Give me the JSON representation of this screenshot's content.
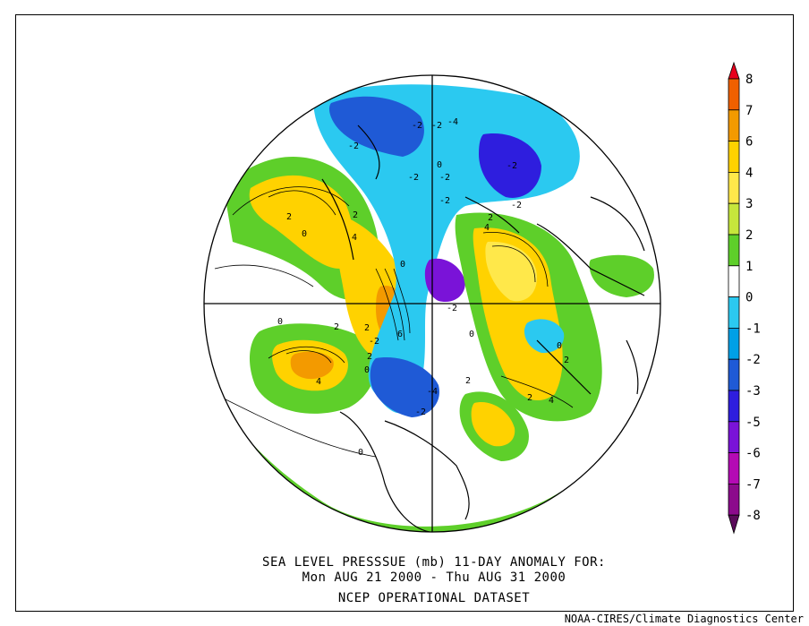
{
  "caption": {
    "line1": "SEA LEVEL PRESSSUE (mb)   11-DAY ANOMALY FOR:",
    "line2": "Mon AUG 21 2000 - Thu AUG 31 2000",
    "line3": "NCEP OPERATIONAL DATASET"
  },
  "credit": "NOAA-CIRES/Climate Diagnostics Center",
  "colorbar": {
    "labels": [
      "8",
      "7",
      "6",
      "4",
      "3",
      "2",
      "1",
      "0",
      "-1",
      "-2",
      "-3",
      "-5",
      "-6",
      "-7",
      "-8"
    ],
    "colors": [
      "#e8001c",
      "#f06000",
      "#f39a00",
      "#ffd200",
      "#ffe84a",
      "#c6e63c",
      "#5ecf2a",
      "#ffffff",
      "#2bc9f0",
      "#00a0e6",
      "#1f5ad6",
      "#2e1ede",
      "#7a13d8",
      "#b40ab4",
      "#8c0a8c",
      "#5a0a5a"
    ]
  },
  "map": {
    "contour_labels": [
      {
        "t": "-2"
      },
      {
        "t": "-2"
      },
      {
        "t": "-4"
      },
      {
        "t": "-2"
      },
      {
        "t": "-2"
      },
      {
        "t": "-2"
      },
      {
        "t": "-2"
      },
      {
        "t": "-2"
      },
      {
        "t": "-2"
      },
      {
        "t": "-2"
      },
      {
        "t": "0"
      },
      {
        "t": "0"
      },
      {
        "t": "0"
      },
      {
        "t": "2"
      },
      {
        "t": "2"
      },
      {
        "t": "4"
      },
      {
        "t": "0"
      },
      {
        "t": "2"
      },
      {
        "t": "4"
      },
      {
        "t": "2"
      },
      {
        "t": "-2"
      },
      {
        "t": "0"
      },
      {
        "t": "2"
      },
      {
        "t": "4"
      },
      {
        "t": "2"
      },
      {
        "t": "0"
      },
      {
        "t": "2"
      },
      {
        "t": "4"
      },
      {
        "t": "2"
      },
      {
        "t": "0"
      },
      {
        "t": "-4"
      },
      {
        "t": "-2"
      },
      {
        "t": "0"
      },
      {
        "t": "2"
      },
      {
        "t": "6"
      }
    ]
  }
}
